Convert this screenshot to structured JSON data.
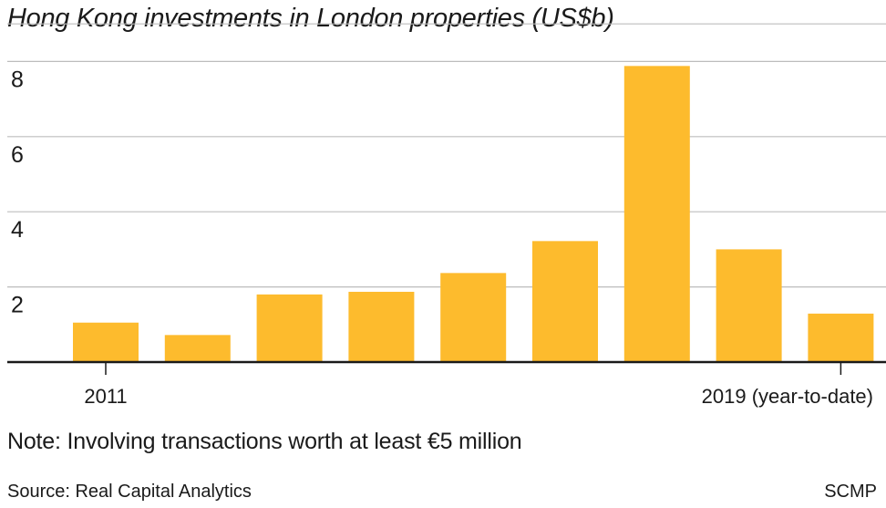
{
  "chart_data": {
    "type": "bar",
    "title": "Hong Kong investments in London properties (US$b)",
    "categories": [
      "2011",
      "",
      "",
      "",
      "",
      "",
      "",
      "",
      "2019 (year-to-date)"
    ],
    "values": [
      1.05,
      0.72,
      1.8,
      1.87,
      2.37,
      3.22,
      7.88,
      3.0,
      1.29
    ],
    "ylim": [
      0,
      9
    ],
    "yticks": [
      2,
      4,
      6,
      8
    ],
    "ytick_labels": [
      "2",
      "4",
      "6",
      "8"
    ],
    "xtick_labels": [
      "2011",
      "2019 (year-to-date)"
    ],
    "xlabel": "",
    "ylabel": "",
    "grid": true,
    "colors": {
      "bar": "#FDBB2D",
      "grid": "#bdbdbd",
      "axis": "#1a1a1a"
    }
  },
  "note": "Note: Involving transactions worth at least €5 million",
  "source": "Source: Real Capital Analytics",
  "credit": "SCMP"
}
